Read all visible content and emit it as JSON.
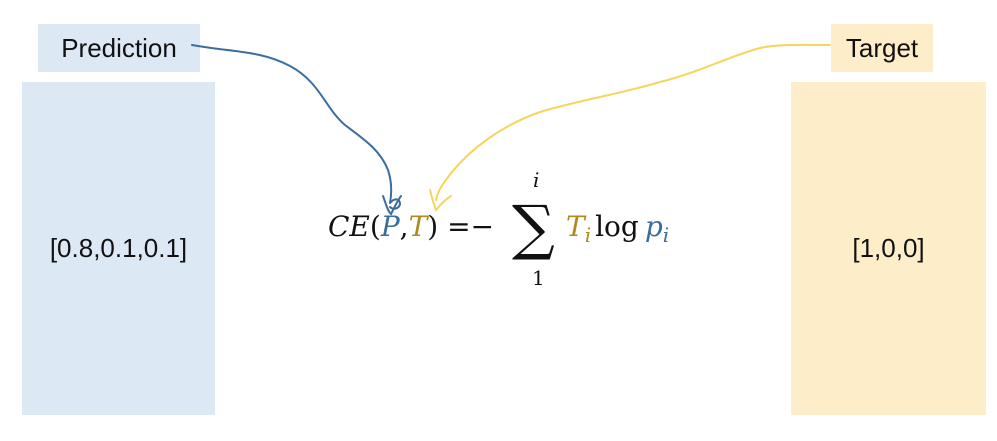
{
  "labels": {
    "prediction": "Prediction",
    "target": "Target"
  },
  "vectors": {
    "prediction": "[0.8,0.1,0.1]",
    "target": "[1,0,0]"
  },
  "formula": {
    "ce": "CE",
    "open_paren": "(",
    "p_arg": "P",
    "comma": ",",
    "t_arg": "T",
    "close_paren": ")",
    "equals_minus": " =−",
    "sum_symbol": "∑",
    "sum_upper": "i",
    "sum_lower": "1",
    "t_term": "T",
    "t_sub": "i",
    "log": "log",
    "p_term": "p",
    "p_sub": "i"
  },
  "colors": {
    "prediction_fill": "#dde8f5",
    "target_fill": "#fdeec9",
    "prediction_accent": "#3a6ea0",
    "target_accent": "#f5d55a",
    "target_text": "#b08a1c"
  }
}
